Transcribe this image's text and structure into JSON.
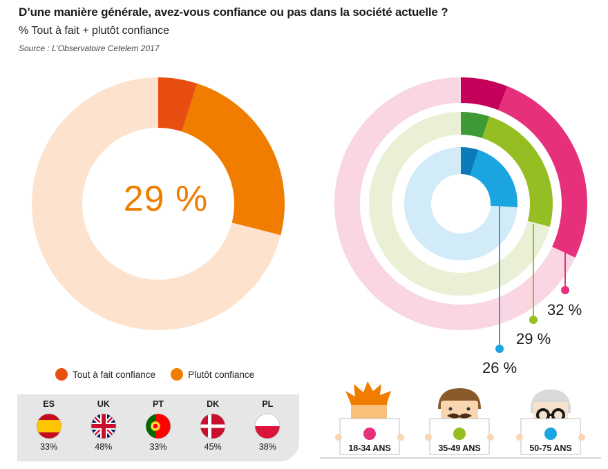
{
  "header": {
    "title": "D’une manière générale, avez-vous confiance ou pas dans la société actuelle ?",
    "subtitle": "% Tout à fait + plutôt confiance",
    "source": "Source : L’Observatoire Cetelem 2017"
  },
  "chart_data": [
    {
      "type": "pie",
      "variant": "donut",
      "center_label": "29 %",
      "slices": [
        {
          "name": "Tout à fait confiance",
          "value": 5,
          "color": "#e84e0f"
        },
        {
          "name": "Plutôt confiance",
          "value": 24,
          "color": "#f07d00"
        },
        {
          "name": "",
          "value": 71,
          "color": "#fde3cd"
        }
      ],
      "legend": [
        {
          "label": "Tout à fait confiance",
          "color": "#e84e0f"
        },
        {
          "label": "Plutôt confiance",
          "color": "#f07d00"
        }
      ],
      "legend_position": "bottom"
    },
    {
      "type": "pie",
      "variant": "concentric-donut",
      "series": [
        {
          "name": "18-34 ANS",
          "value": 32,
          "tout_a_fait": 6,
          "color": "#e6307c",
          "dark_color": "#c4005a",
          "bg_color": "#fad5e3",
          "label": "32 %"
        },
        {
          "name": "35-49 ANS",
          "value": 29,
          "tout_a_fait": 5,
          "color": "#95be23",
          "dark_color": "#3d9a35",
          "bg_color": "#eaf0d5",
          "label": "29 %"
        },
        {
          "name": "50-75 ANS",
          "value": 26,
          "tout_a_fait": 5,
          "color": "#1ba5e0",
          "dark_color": "#0a7bb8",
          "bg_color": "#d2ebf9",
          "label": "26 %"
        }
      ]
    }
  ],
  "countries": [
    {
      "code": "ES",
      "pct": "33%",
      "flag": "spain-flag"
    },
    {
      "code": "UK",
      "pct": "48%",
      "flag": "uk-flag"
    },
    {
      "code": "PT",
      "pct": "33%",
      "flag": "portugal-flag"
    },
    {
      "code": "DK",
      "pct": "45%",
      "flag": "denmark-flag"
    },
    {
      "code": "PL",
      "pct": "38%",
      "flag": "poland-flag"
    }
  ],
  "age_groups": [
    {
      "label": "18-34 ANS",
      "color": "#e6307c",
      "icon": "young-person-icon"
    },
    {
      "label": "35-49 ANS",
      "color": "#95be23",
      "icon": "mustache-man-icon"
    },
    {
      "label": "50-75 ANS",
      "color": "#1ba5e0",
      "icon": "senior-glasses-icon"
    }
  ]
}
